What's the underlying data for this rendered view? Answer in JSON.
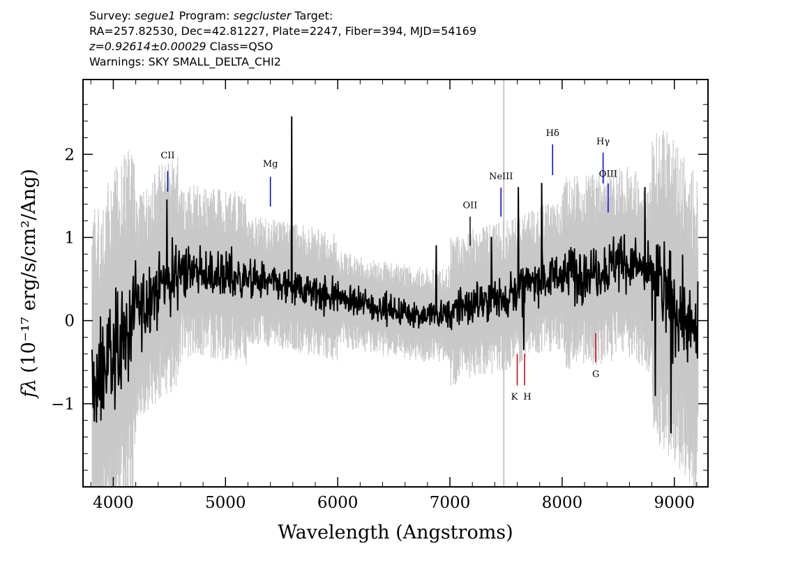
{
  "header": {
    "line1": {
      "survey_label": "Survey:",
      "survey": "segue1",
      "program_label": "Program:",
      "program": "segcluster",
      "target_label": "Target:"
    },
    "line2": "RA=257.82530, Dec=42.81227, Plate=2247, Fiber=394, MJD=54169",
    "line3": {
      "redshift": "z=0.92614±0.00029",
      "class": "Class=QSO"
    },
    "line4": "Warnings: SKY SMALL_DELTA_CHI2"
  },
  "colors": {
    "flux": "#000000",
    "error": "#c8c8c8",
    "emission_marker": "#0000cc",
    "absorption_marker": "#cc0000",
    "frame": "#000000"
  },
  "chart_data": {
    "type": "line",
    "title": "",
    "xlabel": "Wavelength (Angstroms)",
    "ylabel": "(10⁻¹⁷ erg/s/cm²/Ang)",
    "ylabel_symbol": "fλ",
    "xlim": [
      3730,
      9300
    ],
    "ylim": [
      -2.0,
      2.9
    ],
    "xticks": [
      4000,
      5000,
      6000,
      7000,
      8000,
      9000
    ],
    "xtick_labels": [
      "4000",
      "5000",
      "6000",
      "7000",
      "8000",
      "9000"
    ],
    "yticks": [
      -1,
      0,
      1,
      2
    ],
    "ytick_labels": [
      "−1",
      "0",
      "1",
      "2"
    ],
    "grid": false,
    "x_range_data": [
      3810,
      9210
    ],
    "continuum": {
      "x": [
        3810,
        4000,
        4200,
        4400,
        4600,
        5000,
        5400,
        5800,
        6200,
        6600,
        6900,
        7200,
        7500,
        7800,
        8200,
        8600,
        8900,
        9210
      ],
      "y": [
        -0.9,
        -0.4,
        0.05,
        0.45,
        0.6,
        0.55,
        0.45,
        0.35,
        0.2,
        0.1,
        0.05,
        0.2,
        0.3,
        0.5,
        0.6,
        0.7,
        0.4,
        -0.2
      ]
    },
    "series": [
      {
        "role": "flux",
        "kind": "noisy-spectrum"
      },
      {
        "role": "error",
        "kind": "noise-envelope"
      }
    ],
    "spikes": [
      {
        "x": 4480,
        "y": 1.45
      },
      {
        "x": 5590,
        "y": 2.45
      },
      {
        "x": 6880,
        "y": 0.9
      },
      {
        "x": 7370,
        "y": 1.0
      },
      {
        "x": 7610,
        "y": 1.6
      },
      {
        "x": 7820,
        "y": 1.65
      },
      {
        "x": 8740,
        "y": 1.6
      },
      {
        "x": 7660,
        "y": -0.35
      },
      {
        "x": 8970,
        "y": -1.35
      },
      {
        "x": 8830,
        "y": -0.9
      }
    ],
    "emission_lines": [
      {
        "label": "CII",
        "x": 4485,
        "y_bottom": 1.55,
        "y_top": 1.8,
        "label_y": 1.95,
        "color": "blue"
      },
      {
        "label": "Mg",
        "x": 5400,
        "y_bottom": 1.37,
        "y_top": 1.73,
        "label_y": 1.85,
        "color": "blue"
      },
      {
        "label": "OII",
        "x": 7180,
        "y_bottom": 0.9,
        "y_top": 1.25,
        "label_y": 1.35,
        "color": "black"
      },
      {
        "label": "NeIII",
        "x": 7455,
        "y_bottom": 1.25,
        "y_top": 1.6,
        "label_y": 1.7,
        "color": "blue"
      },
      {
        "label": "Hδ",
        "x": 7915,
        "y_bottom": 1.75,
        "y_top": 2.12,
        "label_y": 2.22,
        "color": "blue"
      },
      {
        "label": "Hγ",
        "x": 8365,
        "y_bottom": 1.65,
        "y_top": 2.02,
        "label_y": 2.12,
        "color": "blue"
      },
      {
        "label": "OIII",
        "x": 8410,
        "y_bottom": 1.3,
        "y_top": 1.65,
        "label_y": 1.73,
        "color": "blue"
      }
    ],
    "absorption_lines": [
      {
        "label": "K",
        "x": 7600,
        "y_top": -0.4,
        "y_bottom": -0.78,
        "label_y": -0.95,
        "color": "red"
      },
      {
        "label": "H",
        "x": 7665,
        "y_top": -0.4,
        "y_bottom": -0.78,
        "label_y": -0.95,
        "color": "red"
      },
      {
        "label": "G",
        "x": 8300,
        "y_top": -0.15,
        "y_bottom": -0.5,
        "label_y": -0.68,
        "color": "red"
      }
    ]
  }
}
